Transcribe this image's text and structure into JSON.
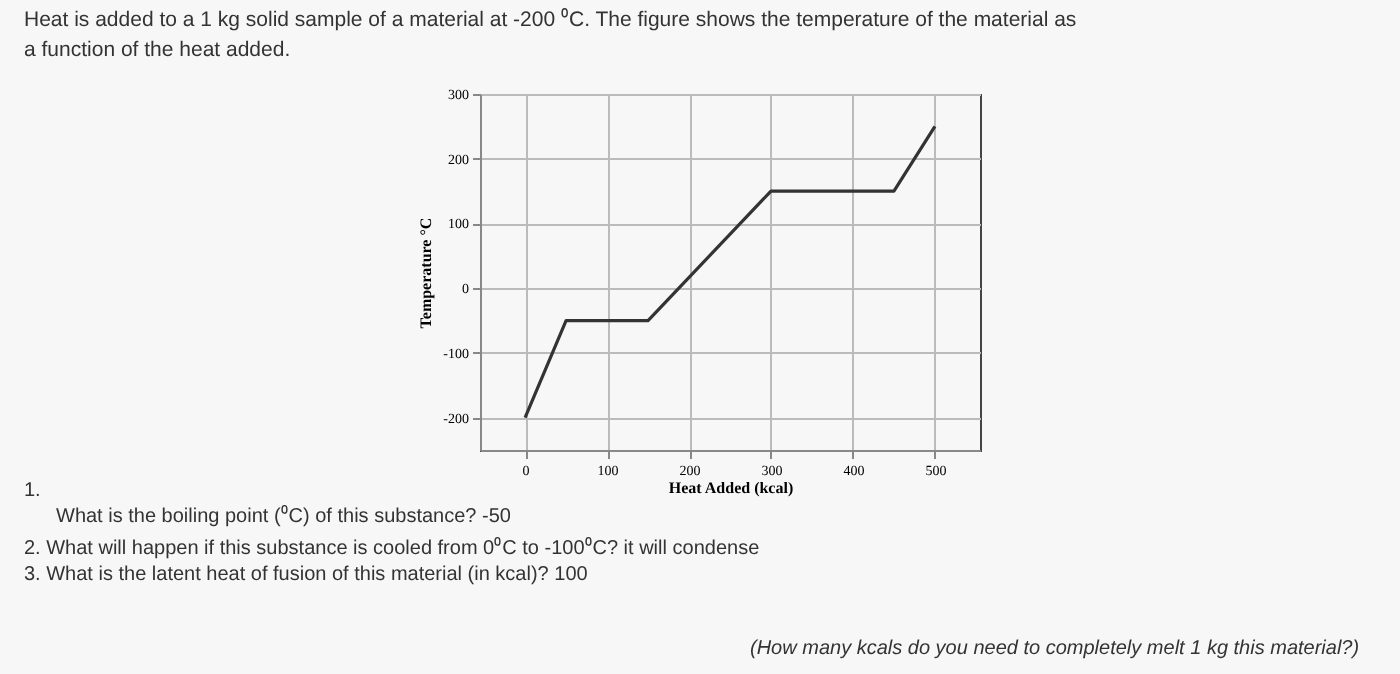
{
  "chart_data": {
    "type": "line",
    "title": "Heat is added to a 1 kg solid sample of a material at -200 ⁰C.  The figure shows the temperature of the material as a function of the heat added.",
    "xlabel": "Heat Added (kcal)",
    "ylabel": "Temperature °C",
    "x": [
      0,
      50,
      150,
      300,
      450,
      500
    ],
    "series": [
      {
        "color": "#333333",
        "values": [
          -200,
          -50,
          -50,
          150,
          150,
          250
        ]
      }
    ],
    "xlim": [
      -55,
      555
    ],
    "xticks": [
      0,
      100,
      200,
      300,
      400,
      500
    ],
    "ylim": [
      -250,
      300
    ],
    "yticks": [
      -200,
      -100,
      0,
      100,
      200,
      300
    ],
    "grid": true,
    "marker": "none",
    "line_style": "solid",
    "annotations": [
      "1.",
      "What is the boiling point (⁰C) of this substance? -50",
      "2. What will happen if this substance is cooled from 0⁰C to -100⁰C? it will condense",
      "3. What is the latent heat of fusion of this material (in kcal)? 100",
      "(How many kcals do you need to completely melt 1 kg this material?)"
    ]
  }
}
